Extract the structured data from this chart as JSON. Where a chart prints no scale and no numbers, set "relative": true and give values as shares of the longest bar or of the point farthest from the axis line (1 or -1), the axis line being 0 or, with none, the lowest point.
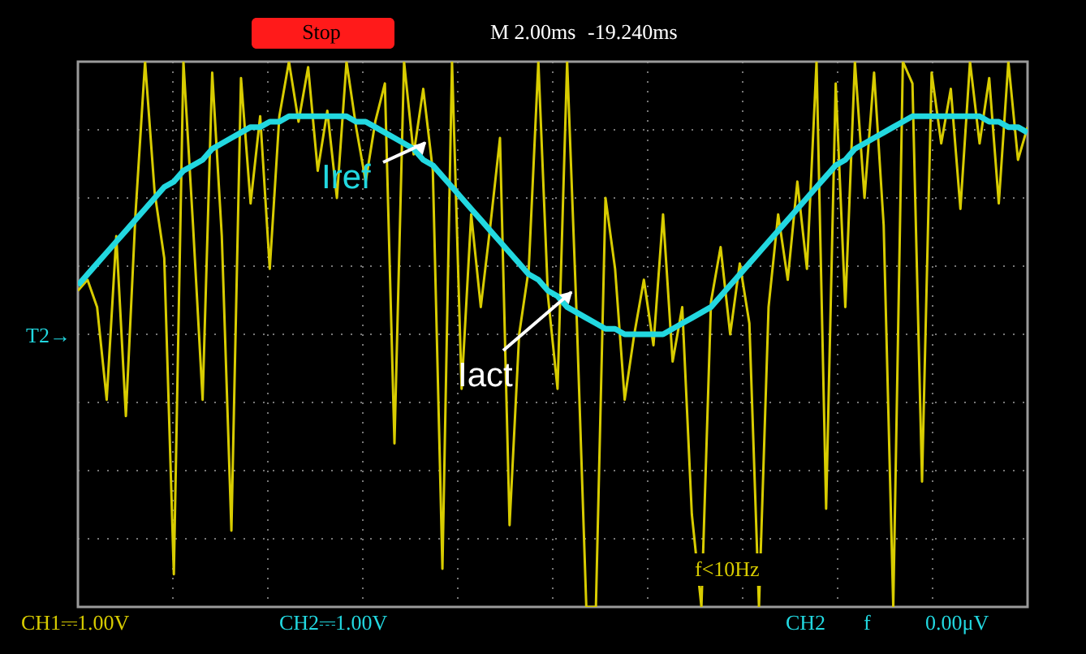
{
  "chart_data": {
    "type": "line",
    "relative": true,
    "grid": true,
    "categories": [
      null,
      null,
      null,
      null,
      null,
      null,
      null,
      null,
      null,
      null,
      null,
      null,
      null,
      null,
      null,
      null,
      null,
      null,
      null,
      null,
      null,
      null,
      null,
      null,
      null,
      null,
      null,
      null,
      null,
      null,
      null,
      null,
      null,
      null,
      null,
      null,
      null,
      null,
      null,
      null,
      null,
      null,
      null,
      null,
      null,
      null,
      null,
      null,
      null,
      null,
      null,
      null,
      null,
      null,
      null,
      null,
      null,
      null,
      null,
      null,
      null,
      null,
      null,
      null,
      null,
      null,
      null,
      null,
      null,
      null,
      null,
      null,
      null,
      null,
      null,
      null,
      null,
      null,
      null,
      null,
      null,
      null,
      null,
      null,
      null,
      null,
      null,
      null,
      null,
      null,
      null,
      null,
      null,
      null,
      null,
      null,
      null,
      null,
      null,
      null
    ],
    "series": [
      {
        "name": "Iact",
        "color": "#d8cc00",
        "values": [
          0.58,
          0.6,
          0.55,
          0.38,
          0.68,
          0.35,
          0.72,
          1.0,
          0.76,
          0.64,
          0.06,
          1.0,
          0.7,
          0.38,
          0.98,
          0.68,
          0.14,
          0.97,
          0.74,
          0.9,
          0.62,
          0.9,
          1.0,
          0.89,
          0.99,
          0.8,
          0.91,
          0.75,
          1.0,
          0.88,
          0.78,
          0.89,
          0.96,
          0.3,
          1.0,
          0.83,
          0.95,
          0.8,
          0.07,
          1.0,
          0.4,
          0.72,
          0.55,
          0.7,
          0.86,
          0.15,
          0.5,
          0.62,
          1.0,
          0.57,
          0.4,
          1.0,
          0.53,
          0.0,
          0.0,
          0.75,
          0.62,
          0.38,
          0.5,
          0.6,
          0.48,
          0.72,
          0.45,
          0.55,
          0.17,
          0.0,
          0.56,
          0.66,
          0.5,
          0.63,
          0.52,
          0.0,
          0.55,
          0.72,
          0.6,
          0.78,
          0.62,
          1.0,
          0.18,
          0.96,
          0.55,
          1.0,
          0.75,
          0.98,
          0.7,
          0.0,
          1.0,
          0.96,
          0.23,
          0.98,
          0.85,
          0.95,
          0.73,
          1.0,
          0.85,
          0.97,
          0.74,
          1.0,
          0.82,
          0.88
        ]
      },
      {
        "name": "Iref",
        "color": "#22d8e0",
        "values": [
          0.59,
          0.61,
          0.63,
          0.65,
          0.67,
          0.69,
          0.71,
          0.73,
          0.75,
          0.77,
          0.78,
          0.8,
          0.81,
          0.82,
          0.84,
          0.85,
          0.86,
          0.87,
          0.88,
          0.88,
          0.89,
          0.89,
          0.9,
          0.9,
          0.9,
          0.9,
          0.9,
          0.9,
          0.9,
          0.89,
          0.89,
          0.88,
          0.87,
          0.86,
          0.85,
          0.84,
          0.82,
          0.81,
          0.79,
          0.77,
          0.75,
          0.73,
          0.71,
          0.69,
          0.67,
          0.65,
          0.63,
          0.61,
          0.6,
          0.58,
          0.57,
          0.55,
          0.54,
          0.53,
          0.52,
          0.51,
          0.51,
          0.5,
          0.5,
          0.5,
          0.5,
          0.5,
          0.51,
          0.52,
          0.53,
          0.54,
          0.55,
          0.57,
          0.59,
          0.61,
          0.63,
          0.65,
          0.67,
          0.69,
          0.71,
          0.73,
          0.75,
          0.77,
          0.79,
          0.81,
          0.82,
          0.84,
          0.85,
          0.86,
          0.87,
          0.88,
          0.89,
          0.9,
          0.9,
          0.9,
          0.9,
          0.9,
          0.9,
          0.9,
          0.9,
          0.89,
          0.89,
          0.88,
          0.88,
          0.87
        ]
      }
    ],
    "annotations": [
      "Stop",
      "M 2.00ms",
      "-19.240ms",
      "T2→",
      "CH1⎓1.00V",
      "CH2⎓1.00V",
      "CH2",
      "f",
      "0.00μV",
      "f<10Hz"
    ]
  }
}
